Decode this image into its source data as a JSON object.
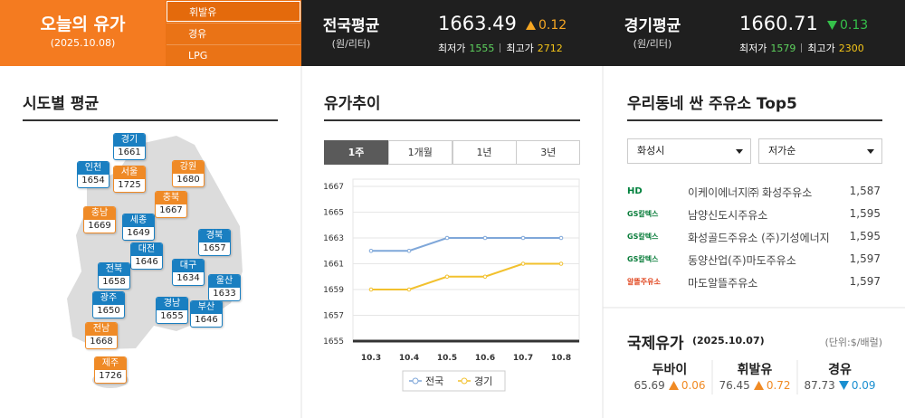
{
  "header": {
    "title": "오늘의 유가",
    "date": "(2025.10.08)",
    "fuel_tabs": [
      "휘발유",
      "경유",
      "LPG"
    ],
    "active_fuel_tab": 0,
    "averages": [
      {
        "label": "전국평균",
        "unit": "(원/리터)",
        "value": 1663.49,
        "change": 0.12,
        "direction": "up",
        "min_label": "최저가",
        "min": 1555,
        "max_label": "최고가",
        "max": 2712
      },
      {
        "label": "경기평균",
        "unit": "(원/리터)",
        "value": 1660.71,
        "change": 0.13,
        "direction": "down",
        "min_label": "최저가",
        "min": 1579,
        "max_label": "최고가",
        "max": 2300
      }
    ]
  },
  "regions": {
    "title": "시도별 평균",
    "items": [
      {
        "name": "경기",
        "value": 1661,
        "color": "#1a7fc1"
      },
      {
        "name": "인천",
        "value": 1654,
        "color": "#1a7fc1"
      },
      {
        "name": "서울",
        "value": 1725,
        "color": "#ef8a26"
      },
      {
        "name": "강원",
        "value": 1680,
        "color": "#ef8a26"
      },
      {
        "name": "충북",
        "value": 1667,
        "color": "#ef8a26"
      },
      {
        "name": "충남",
        "value": 1669,
        "color": "#ef8a26"
      },
      {
        "name": "세종",
        "value": 1649,
        "color": "#1a7fc1"
      },
      {
        "name": "경북",
        "value": 1657,
        "color": "#1a7fc1"
      },
      {
        "name": "대전",
        "value": 1646,
        "color": "#1a7fc1"
      },
      {
        "name": "전북",
        "value": 1658,
        "color": "#1a7fc1"
      },
      {
        "name": "대구",
        "value": 1634,
        "color": "#1a7fc1"
      },
      {
        "name": "울산",
        "value": 1633,
        "color": "#1a7fc1"
      },
      {
        "name": "광주",
        "value": 1650,
        "color": "#1a7fc1"
      },
      {
        "name": "경남",
        "value": 1655,
        "color": "#1a7fc1"
      },
      {
        "name": "부산",
        "value": 1646,
        "color": "#1a7fc1"
      },
      {
        "name": "전남",
        "value": 1668,
        "color": "#ef8a26"
      },
      {
        "name": "제주",
        "value": 1726,
        "color": "#ef8a26"
      }
    ]
  },
  "chart_data": {
    "type": "line",
    "title": "유가추이",
    "tabs": [
      "1주",
      "1개월",
      "1년",
      "3년"
    ],
    "active_tab": 0,
    "categories": [
      "10.3",
      "10.4",
      "10.5",
      "10.6",
      "10.7",
      "10.8"
    ],
    "series": [
      {
        "name": "전국",
        "color": "#7fa7d9",
        "values": [
          1662,
          1662,
          1663,
          1663,
          1663,
          1663
        ]
      },
      {
        "name": "경기",
        "color": "#f2c12e",
        "values": [
          1659,
          1659,
          1660,
          1660,
          1661,
          1661
        ]
      }
    ],
    "ylim": [
      1655,
      1667
    ],
    "yticks": [
      1655,
      1657,
      1659,
      1661,
      1663,
      1665,
      1667
    ],
    "grid": true
  },
  "stations": {
    "title": "우리동네 싼 주유소 Top5",
    "selects": [
      "화성시",
      "저가순"
    ],
    "items": [
      {
        "brand": "HD",
        "name": "이케이에너지㈜ 화성주유소",
        "price": "1,587"
      },
      {
        "brand": "GS칼텍스",
        "name": "남양신도시주유소",
        "price": "1,595"
      },
      {
        "brand": "GS칼텍스",
        "name": "화성골드주유소 (주)기성에너지",
        "price": "1,595"
      },
      {
        "brand": "GS칼텍스",
        "name": "동양산업(주)마도주유소",
        "price": "1,597"
      },
      {
        "brand": "알뜰주유소",
        "name": "마도알뜰주유소",
        "price": "1,597"
      }
    ]
  },
  "international": {
    "title": "국제유가",
    "date": "(2025.10.07)",
    "unit": "(단위:$/배럴)",
    "items": [
      {
        "name": "두바이",
        "value": 65.69,
        "change": 0.06,
        "direction": "up"
      },
      {
        "name": "휘발유",
        "value": 76.45,
        "change": 0.72,
        "direction": "up"
      },
      {
        "name": "경유",
        "value": 87.73,
        "change": 0.09,
        "direction": "down"
      }
    ]
  }
}
